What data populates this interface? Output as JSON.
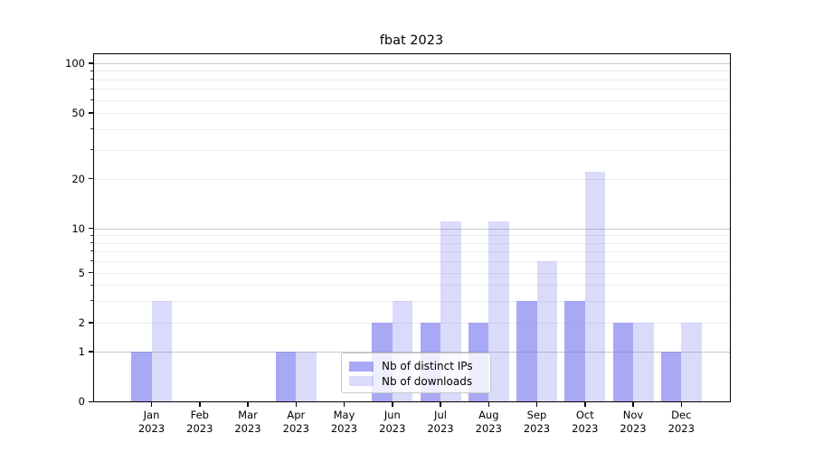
{
  "chart_data": {
    "type": "bar",
    "title": "fbat 2023",
    "categories": [
      "Jan 2023",
      "Feb 2023",
      "Mar 2023",
      "Apr 2023",
      "May 2023",
      "Jun 2023",
      "Jul 2023",
      "Aug 2023",
      "Sep 2023",
      "Oct 2023",
      "Nov 2023",
      "Dec 2023"
    ],
    "series": [
      {
        "name": "Nb of distinct IPs",
        "color": "rgba(123,123,240,0.66)",
        "values": [
          1,
          0,
          0,
          1,
          0,
          2,
          2,
          2,
          3,
          3,
          2,
          1
        ]
      },
      {
        "name": "Nb of downloads",
        "color": "rgba(123,123,240,0.28)",
        "values": [
          3,
          0,
          0,
          1,
          0,
          3,
          11,
          11,
          6,
          22,
          2,
          2
        ]
      }
    ],
    "y_axis": {
      "scale": "symlog-like",
      "ylim": [
        0,
        100
      ],
      "tick_labels": [
        "0",
        "1",
        "2",
        "5",
        "10",
        "20",
        "50",
        "100"
      ],
      "tick_values": [
        0,
        1,
        2,
        5,
        10,
        20,
        50,
        100
      ],
      "major_gridlines": [
        1,
        10,
        100
      ],
      "minor_gridlines": [
        2,
        3,
        4,
        5,
        6,
        7,
        8,
        9,
        20,
        30,
        40,
        50,
        60,
        70,
        80,
        90
      ]
    },
    "grid": true,
    "legend_position": "lower center",
    "colors": {
      "major_gridline": "#c8c8c8",
      "minor_gridline": "#ececec",
      "axis": "#000000",
      "background": "#ffffff"
    }
  }
}
